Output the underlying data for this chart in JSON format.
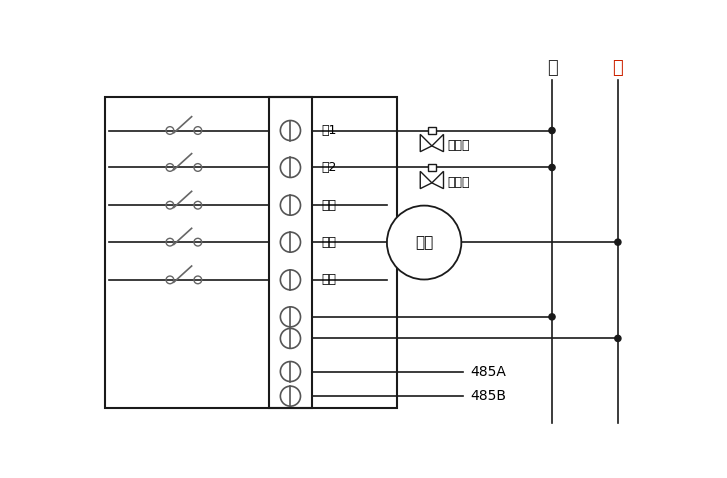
{
  "bg_color": "#ffffff",
  "line_color": "#1a1a1a",
  "text_color": "#000000",
  "zero_label": "零",
  "fire_label": "火",
  "row_labels": [
    "锷1",
    "锷2",
    "低速",
    "中速",
    "高速"
  ],
  "label_485A": "485A",
  "label_485B": "485B",
  "hot_valve_label": "热水阀",
  "cold_valve_label": "冷水阀",
  "fan_label": "风机",
  "font_size": 9,
  "font_size_header": 13
}
